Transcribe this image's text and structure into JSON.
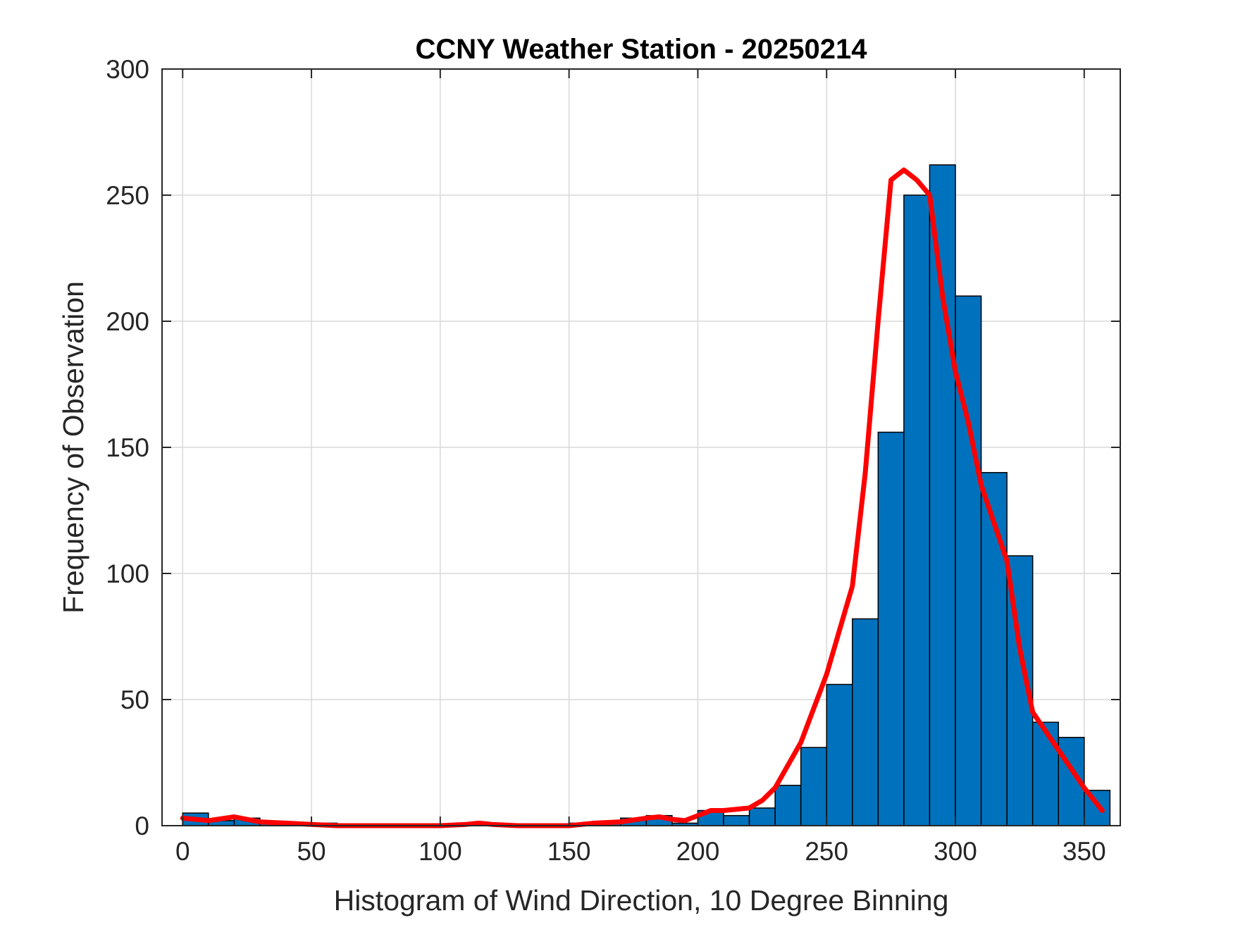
{
  "chart_data": {
    "type": "bar",
    "title": "CCNY Weather Station - 20250214",
    "xlabel": "Histogram of Wind Direction, 10 Degree Binning",
    "ylabel": "Frequency of Observation",
    "xlim": [
      -8,
      364
    ],
    "ylim": [
      0,
      300
    ],
    "xticks": [
      0,
      50,
      100,
      150,
      200,
      250,
      300,
      350
    ],
    "yticks": [
      0,
      50,
      100,
      150,
      200,
      250,
      300
    ],
    "grid": true,
    "bin_width": 10,
    "bins": [
      {
        "x0": 0,
        "x1": 10,
        "value": 5
      },
      {
        "x0": 10,
        "x1": 20,
        "value": 2
      },
      {
        "x0": 20,
        "x1": 30,
        "value": 3
      },
      {
        "x0": 30,
        "x1": 40,
        "value": 1
      },
      {
        "x0": 40,
        "x1": 50,
        "value": 1
      },
      {
        "x0": 50,
        "x1": 60,
        "value": 1
      },
      {
        "x0": 60,
        "x1": 70,
        "value": 0
      },
      {
        "x0": 70,
        "x1": 80,
        "value": 0
      },
      {
        "x0": 80,
        "x1": 90,
        "value": 0
      },
      {
        "x0": 90,
        "x1": 100,
        "value": 0
      },
      {
        "x0": 100,
        "x1": 110,
        "value": 0
      },
      {
        "x0": 110,
        "x1": 120,
        "value": 1
      },
      {
        "x0": 120,
        "x1": 130,
        "value": 0
      },
      {
        "x0": 130,
        "x1": 140,
        "value": 0
      },
      {
        "x0": 140,
        "x1": 150,
        "value": 0
      },
      {
        "x0": 150,
        "x1": 160,
        "value": 1
      },
      {
        "x0": 160,
        "x1": 170,
        "value": 1
      },
      {
        "x0": 170,
        "x1": 180,
        "value": 3
      },
      {
        "x0": 180,
        "x1": 190,
        "value": 4
      },
      {
        "x0": 190,
        "x1": 200,
        "value": 1
      },
      {
        "x0": 200,
        "x1": 210,
        "value": 6
      },
      {
        "x0": 210,
        "x1": 220,
        "value": 4
      },
      {
        "x0": 220,
        "x1": 230,
        "value": 7
      },
      {
        "x0": 230,
        "x1": 240,
        "value": 16
      },
      {
        "x0": 240,
        "x1": 250,
        "value": 31
      },
      {
        "x0": 250,
        "x1": 260,
        "value": 56
      },
      {
        "x0": 260,
        "x1": 270,
        "value": 82
      },
      {
        "x0": 270,
        "x1": 280,
        "value": 156
      },
      {
        "x0": 280,
        "x1": 290,
        "value": 250
      },
      {
        "x0": 290,
        "x1": 300,
        "value": 262
      },
      {
        "x0": 300,
        "x1": 310,
        "value": 210
      },
      {
        "x0": 310,
        "x1": 320,
        "value": 140
      },
      {
        "x0": 320,
        "x1": 330,
        "value": 107
      },
      {
        "x0": 330,
        "x1": 340,
        "value": 41
      },
      {
        "x0": 340,
        "x1": 350,
        "value": 35
      },
      {
        "x0": 350,
        "x1": 360,
        "value": 14
      }
    ],
    "fit_curve": {
      "x": [
        0,
        10,
        20,
        30,
        40,
        50,
        60,
        80,
        100,
        110,
        115,
        120,
        130,
        140,
        150,
        160,
        170,
        180,
        185,
        190,
        195,
        200,
        205,
        210,
        220,
        225,
        230,
        240,
        250,
        260,
        265,
        270,
        275,
        280,
        285,
        290,
        295,
        300,
        305,
        310,
        320,
        325,
        330,
        340,
        350,
        357
      ],
      "y": [
        3,
        2,
        3.5,
        1.5,
        1,
        0.5,
        0,
        0,
        0,
        0.5,
        1,
        0.5,
        0,
        0,
        0,
        1,
        1.5,
        3,
        3.5,
        2.5,
        2,
        4,
        6,
        6,
        7,
        10,
        15,
        33,
        60,
        95,
        140,
        200,
        256,
        260,
        256,
        250,
        210,
        180,
        160,
        135,
        105,
        70,
        45,
        30,
        15,
        6
      ]
    },
    "bar_color": "#0072BD",
    "fit_color": "#FF0000"
  }
}
